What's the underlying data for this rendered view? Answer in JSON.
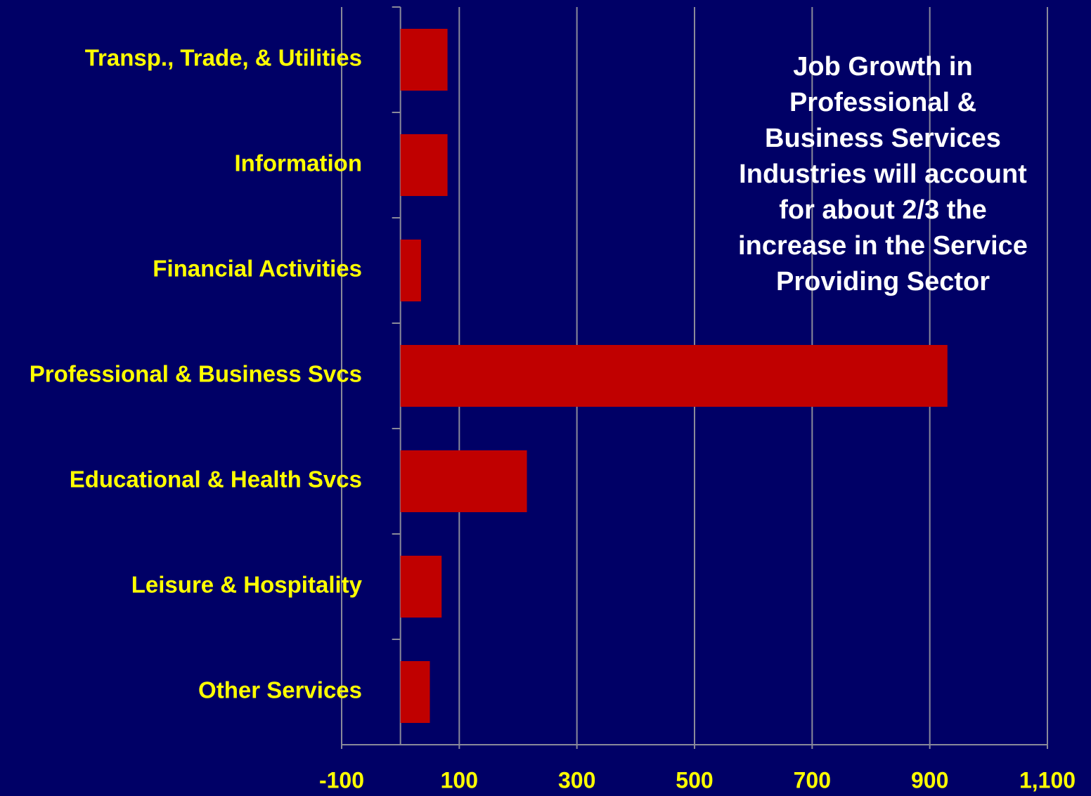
{
  "chart_data": {
    "type": "bar",
    "orientation": "horizontal",
    "categories": [
      "Transp., Trade, & Utilities",
      "Information",
      "Financial Activities",
      "Professional & Business Svcs",
      "Educational & Health Svcs",
      "Leisure & Hospitality",
      "Other Services"
    ],
    "values": [
      80,
      80,
      35,
      930,
      215,
      70,
      50
    ],
    "color": "#c00000",
    "xlim": [
      -100,
      1100
    ],
    "xticks": [
      -100,
      100,
      300,
      500,
      700,
      900,
      {
        "value": 1100,
        "label": "1,100"
      }
    ],
    "grid": true,
    "annotation": [
      "Job Growth in",
      "Professional &",
      "Business Services",
      "Industries will account",
      "for about 2/3 the",
      "increase in the Service",
      "Providing Sector"
    ]
  }
}
